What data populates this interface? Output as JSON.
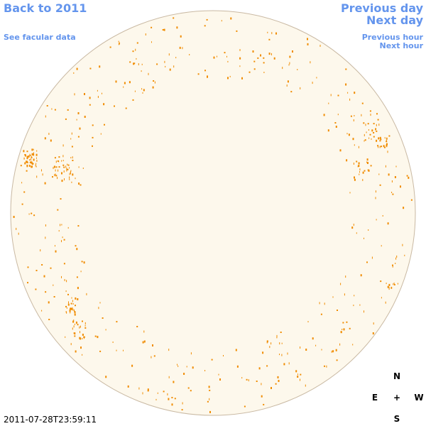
{
  "header": {
    "back_link": "Back to 2011",
    "facular_link": "See facular data",
    "previous_day": "Previous day",
    "next_day": "Next day",
    "previous_hour": "Previous hour",
    "next_hour": "Next hour"
  },
  "timestamp": "2011-07-28T23:59:11",
  "compass": {
    "north": "N",
    "east": "E",
    "center": "+",
    "west": "W",
    "south": "S"
  }
}
